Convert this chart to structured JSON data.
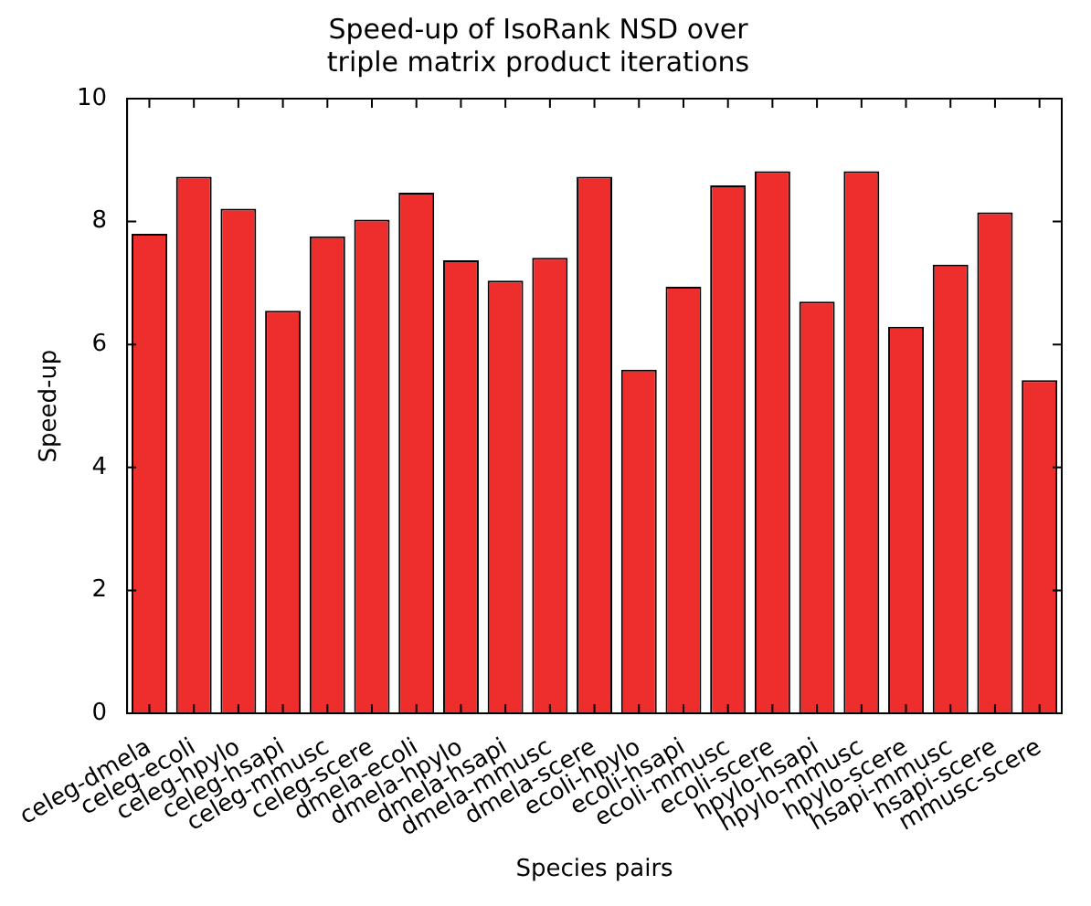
{
  "chart_data": {
    "type": "bar",
    "title": "Speed-up of IsoRank NSD over\ntriple matrix product iterations",
    "xlabel": "Species pairs",
    "ylabel": "Speed-up",
    "categories": [
      "celeg-dmela",
      "celeg-ecoli",
      "celeg-hpylo",
      "celeg-hsapi",
      "celeg-mmusc",
      "celeg-scere",
      "dmela-ecoli",
      "dmela-hpylo",
      "dmela-hsapi",
      "dmela-mmusc",
      "dmela-scere",
      "ecoli-hpylo",
      "ecoli-hsapi",
      "ecoli-mmusc",
      "ecoli-scere",
      "hpylo-hsapi",
      "hpylo-mmusc",
      "hpylo-scere",
      "hsapi-mmusc",
      "hsapi-scere",
      "mmusc-scere"
    ],
    "values": [
      7.8,
      8.73,
      8.21,
      6.55,
      7.76,
      8.03,
      8.47,
      7.37,
      7.04,
      7.41,
      8.73,
      5.59,
      6.94,
      8.59,
      8.82,
      6.7,
      8.82,
      6.29,
      7.3,
      8.15,
      5.42
    ],
    "color": "#ee2d2d",
    "ylim": [
      0,
      10
    ],
    "yticks": [
      0,
      2,
      4,
      6,
      8,
      10
    ],
    "grid": false,
    "legend": false
  }
}
